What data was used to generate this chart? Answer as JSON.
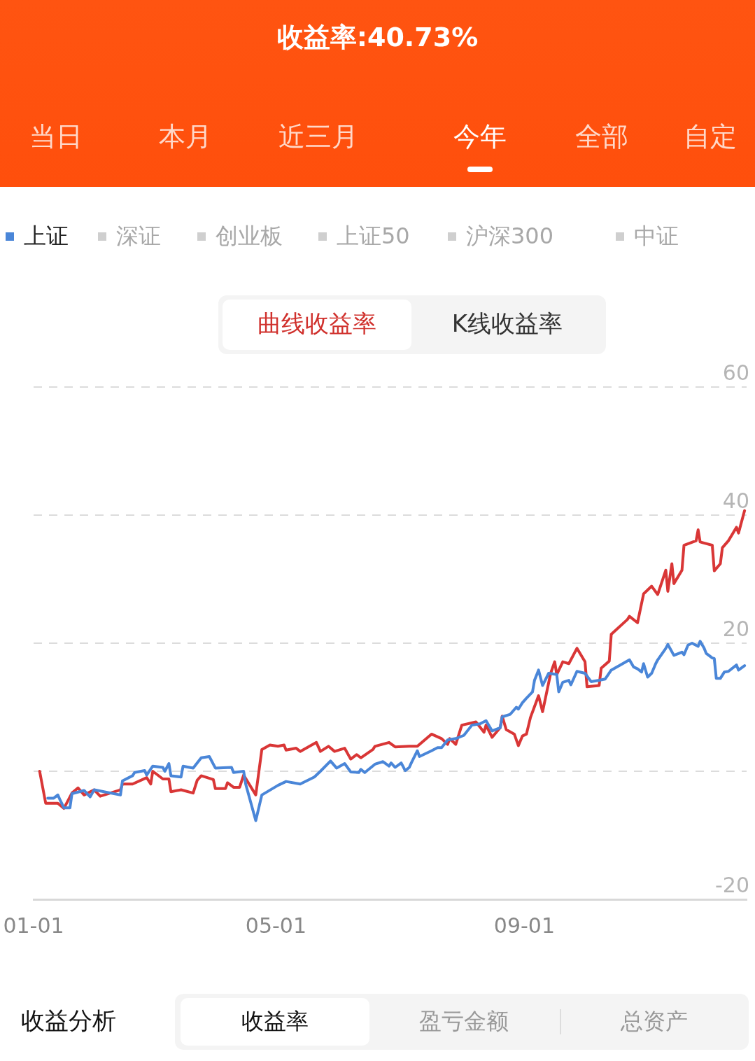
{
  "chart_data": {
    "type": "line",
    "title": "收益率:40.73%",
    "annotations": [
      "当日",
      "本月",
      "近三月",
      "今年",
      "全部",
      "自定",
      "深证",
      "创业板",
      "上证50",
      "沪深300",
      "中证",
      "曲线收益率",
      "K线收益率",
      "收益分析",
      "收益率",
      "盈亏金额",
      "总资产"
    ],
    "xlim": [
      "--01-01",
      "--12-20"
    ],
    "xticks": [
      {
        "value": "--01-01",
        "label": "01-01"
      },
      {
        "value": "--05-01",
        "label": "05-01"
      },
      {
        "value": "--09-01",
        "label": "09-01"
      }
    ],
    "ylim": [
      -20,
      60
    ],
    "yticks": [
      60,
      40,
      20,
      {
        "value": 0,
        "label": null
      },
      -20
    ],
    "grid": "y",
    "legend": "top left",
    "marker": "none",
    "line_style": "solid",
    "series": [
      {
        "type": "line",
        "color": "#d93636",
        "x": [
          "--01-04",
          "--01-07",
          "--01-13",
          "--01-16",
          "--01-20",
          "--01-23",
          "--01-26",
          "--01-31",
          "--02-03",
          "--02-13",
          "--02-14",
          "--02-19",
          "--02-26",
          "--02-28",
          "--03-01",
          "--03-06",
          "--03-09",
          "--03-10",
          "--03-15",
          "--03-21",
          "--03-23",
          "--03-25",
          "--03-31",
          "--04-01",
          "--04-06",
          "--04-07",
          "--04-10",
          "--04-13",
          "--04-15",
          "--04-21",
          "--04-24",
          "--04-28",
          "--05-02",
          "--05-05",
          "--05-06",
          "--05-11",
          "--05-13",
          "--05-21",
          "--05-23",
          "--05-27",
          "--05-30",
          "--06-04",
          "--06-07",
          "--06-10",
          "--06-12",
          "--06-18",
          "--06-19",
          "--06-26",
          "--06-29",
          "--07-06",
          "--07-10",
          "--07-17",
          "--07-22",
          "--07-25",
          "--07-26",
          "--07-29",
          "--08-01",
          "--08-08",
          "--08-12",
          "--08-13",
          "--08-16",
          "--08-20",
          "--08-21",
          "--08-23",
          "--08-27",
          "--08-29",
          "--08-31",
          "--09-02",
          "--09-04",
          "--09-08",
          "--09-10",
          "--09-14",
          "--09-16",
          "--09-17",
          "--09-20",
          "--09-23",
          "--09-27",
          "--10-01",
          "--10-02",
          "--10-08",
          "--10-09",
          "--10-13",
          "--10-14",
          "--10-22",
          "--10-23",
          "--10-27",
          "--10-30",
          "--11-03",
          "--11-06",
          "--11-10",
          "--11-11",
          "--11-13",
          "--11-14",
          "--11-18",
          "--11-19",
          "--11-25",
          "--11-26",
          "--11-27",
          "--12-03",
          "--12-04",
          "--12-07",
          "--12-08",
          "--12-11",
          "--12-15",
          "--12-16",
          "--12-19"
        ],
        "values": [
          0,
          -5,
          -5,
          -5.8,
          -3.4,
          -2.6,
          -3.7,
          -2.9,
          -3.9,
          -2.9,
          -2,
          -2,
          -1,
          -2,
          0,
          -1.2,
          -1.2,
          -3.2,
          -2.9,
          -3.4,
          -1.4,
          -0.7,
          -1.3,
          -2.7,
          -2.7,
          -1.8,
          -2.5,
          -2.5,
          -0.6,
          -3.7,
          3.4,
          4.1,
          3.9,
          4.1,
          3.3,
          3.6,
          3.1,
          4.5,
          3.1,
          3.9,
          3.1,
          3.6,
          1.9,
          2.6,
          2.1,
          3.4,
          3.9,
          4.5,
          3.8,
          3.9,
          3.9,
          5.8,
          5.1,
          4.2,
          5.1,
          4.2,
          7.2,
          7.7,
          6.1,
          7.2,
          5.3,
          6.8,
          8.6,
          6.5,
          5.8,
          4,
          5.5,
          5.8,
          8.4,
          11.8,
          9.3,
          15.3,
          17.1,
          15.1,
          17.1,
          16.8,
          19.2,
          17.1,
          13.2,
          13.4,
          16.1,
          17.2,
          21.4,
          23.7,
          24.2,
          23.2,
          27.7,
          28.9,
          27.6,
          31.4,
          28.1,
          32.4,
          29.3,
          31.4,
          35.3,
          36,
          37.7,
          35.8,
          35.3,
          31.3,
          32.4,
          34.9,
          36,
          38.1,
          37.2,
          40.7
        ]
      },
      {
        "type": "line",
        "name": "上证",
        "color": "#4a86d8",
        "x": [
          "--01-08",
          "--01-11",
          "--01-13",
          "--01-14",
          "--01-16",
          "--01-19",
          "--01-20",
          "--01-26",
          "--01-29",
          "--01-31",
          "--02-13",
          "--02-14",
          "--02-19",
          "--02-20",
          "--02-25",
          "--02-26",
          "--03-01",
          "--03-06",
          "--03-07",
          "--03-09",
          "--03-10",
          "--03-15",
          "--03-16",
          "--03-21",
          "--03-25",
          "--03-29",
          "--04-01",
          "--04-09",
          "--04-10",
          "--04-15",
          "--04-16",
          "--04-21",
          "--04-24",
          "--05-02",
          "--05-06",
          "--05-13",
          "--05-20",
          "--05-23",
          "--05-28",
          "--05-31",
          "--06-04",
          "--06-07",
          "--06-11",
          "--06-12",
          "--06-14",
          "--06-19",
          "--06-23",
          "--06-26",
          "--06-27",
          "--06-29",
          "--07-02",
          "--07-04",
          "--07-06",
          "--07-07",
          "--07-10",
          "--07-11",
          "--07-17",
          "--07-20",
          "--07-22",
          "--07-25",
          "--07-29",
          "--08-02",
          "--08-06",
          "--08-10",
          "--08-13",
          "--08-16",
          "--08-20",
          "--08-21",
          "--08-25",
          "--08-28",
          "--08-29",
          "--08-31",
          "--09-02",
          "--09-05",
          "--09-06",
          "--09-08",
          "--09-10",
          "--09-13",
          "--09-17",
          "--09-18",
          "--09-20",
          "--09-23",
          "--09-24",
          "--09-27",
          "--10-01",
          "--10-04",
          "--10-08",
          "--10-11",
          "--10-14",
          "--10-18",
          "--10-23",
          "--10-25",
          "--10-27",
          "--10-29",
          "--10-30",
          "--11-01",
          "--11-03",
          "--11-05",
          "--11-06",
          "--11-10",
          "--11-11",
          "--11-14",
          "--11-18",
          "--11-19",
          "--11-21",
          "--11-23",
          "--11-26",
          "--11-27",
          "--11-29",
          "--11-30",
          "--12-03",
          "--12-04",
          "--12-05",
          "--12-07",
          "--12-09",
          "--12-11",
          "--12-15",
          "--12-16",
          "--12-19"
        ],
        "values": [
          -4.2,
          -4.2,
          -3.7,
          -4.4,
          -5.7,
          -5.7,
          -3.5,
          -3,
          -4,
          -2.9,
          -3.7,
          -1.5,
          -0.7,
          -0.2,
          0.1,
          -0.6,
          0.8,
          0.6,
          0,
          1.2,
          -0.7,
          -0.9,
          0.8,
          0.5,
          2.1,
          2.3,
          0.5,
          0.6,
          -0.2,
          0,
          -2,
          -7.7,
          -3.7,
          -2.2,
          -1.6,
          -2,
          -0.9,
          0,
          1.6,
          0.5,
          1.2,
          -0.1,
          -0.2,
          0.3,
          -0.2,
          1.1,
          1.5,
          0.8,
          1.3,
          0.6,
          1.3,
          0.1,
          0.6,
          1.3,
          3.2,
          2.3,
          3.2,
          3.7,
          3.7,
          4.9,
          5.1,
          5.6,
          7.2,
          7.4,
          7.9,
          6.3,
          6.8,
          8.5,
          8.9,
          10,
          9.7,
          10.7,
          11.4,
          12.4,
          14.2,
          15.8,
          13.4,
          15.3,
          15.1,
          12.4,
          13.9,
          14.2,
          13.5,
          15.6,
          15.3,
          14,
          14.2,
          14.4,
          15.8,
          16.5,
          17.4,
          16.3,
          16,
          15.5,
          16.8,
          14.7,
          15.3,
          16.8,
          17.4,
          19.2,
          19.8,
          18.1,
          18.6,
          18.2,
          19.7,
          20,
          19.5,
          20.3,
          19.2,
          18.4,
          17.7,
          17.6,
          14.5,
          14.5,
          15.5,
          15.6,
          16.6,
          15.8,
          16.5
        ]
      }
    ]
  }
}
